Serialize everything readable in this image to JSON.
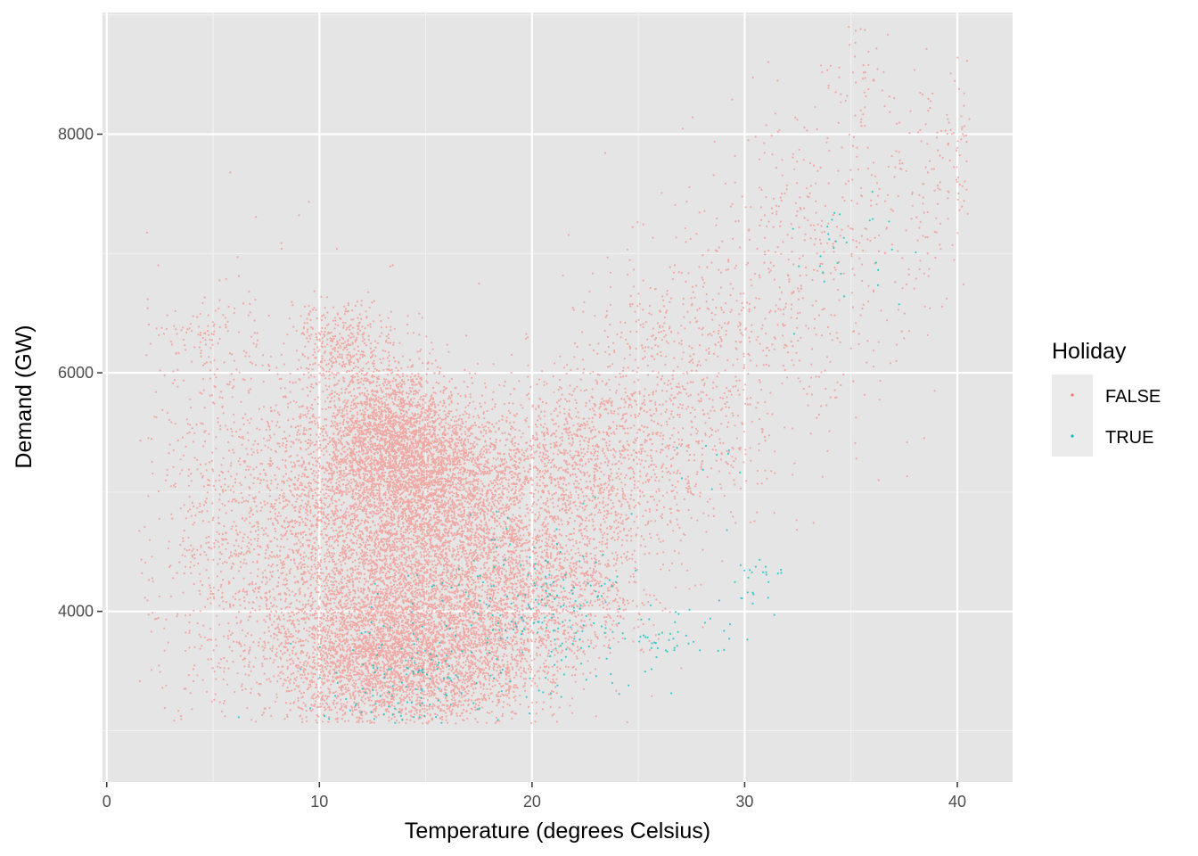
{
  "chart_data": {
    "type": "scatter",
    "title": "",
    "xlabel": "Temperature (degrees Celsius)",
    "ylabel": "Demand (GW)",
    "xlim": [
      -0.2,
      42.6
    ],
    "ylim": [
      2570,
      9020
    ],
    "x_ticks": [
      0,
      10,
      20,
      30,
      40
    ],
    "x_tick_labels": [
      "0",
      "10",
      "20",
      "30",
      "40"
    ],
    "y_ticks": [
      4000,
      6000,
      8000
    ],
    "y_tick_labels": [
      "4000",
      "6000",
      "8000"
    ],
    "x_minor": [
      5,
      15,
      25,
      35
    ],
    "y_minor": [
      3000,
      5000,
      7000,
      9000
    ],
    "grid": true,
    "panel_color": "#e5e5e5",
    "legend": {
      "title": "Holiday",
      "placement": "right",
      "entries": [
        {
          "label": "FALSE",
          "color": "#f8766d"
        },
        {
          "label": "TRUE",
          "color": "#00bfc4"
        }
      ]
    },
    "series": [
      {
        "name": "FALSE",
        "color": "#f8766d",
        "clusters": [
          {
            "x": 13.5,
            "y": 5400,
            "sx": 1.8,
            "sy": 330,
            "n": 2600
          },
          {
            "x": 16.5,
            "y": 5100,
            "sx": 2.0,
            "sy": 300,
            "n": 1400
          },
          {
            "x": 12.5,
            "y": 3600,
            "sx": 2.3,
            "sy": 330,
            "n": 2300
          },
          {
            "x": 16.5,
            "y": 3650,
            "sx": 2.4,
            "sy": 330,
            "n": 1700
          },
          {
            "x": 15.0,
            "y": 4400,
            "sx": 2.8,
            "sy": 420,
            "n": 2400
          },
          {
            "x": 11.0,
            "y": 4700,
            "sx": 2.2,
            "sy": 700,
            "n": 1500
          },
          {
            "x": 22.0,
            "y": 5200,
            "sx": 2.0,
            "sy": 350,
            "n": 900
          },
          {
            "x": 20.5,
            "y": 4200,
            "sx": 2.4,
            "sy": 320,
            "n": 1100
          },
          {
            "x": 6.5,
            "y": 4600,
            "sx": 2.4,
            "sy": 850,
            "n": 1100
          },
          {
            "x": 25.0,
            "y": 5500,
            "sx": 2.5,
            "sy": 600,
            "n": 600
          },
          {
            "x": 28.5,
            "y": 6100,
            "sx": 2.6,
            "sy": 650,
            "n": 500
          },
          {
            "x": 33.5,
            "y": 7000,
            "sx": 2.2,
            "sy": 650,
            "n": 350
          },
          {
            "x": 38.5,
            "y": 7500,
            "sx": 1.6,
            "sy": 550,
            "n": 150
          },
          {
            "x": 11.0,
            "y": 6200,
            "sx": 1.2,
            "sy": 200,
            "n": 350
          },
          {
            "x": 4.0,
            "y": 6300,
            "sx": 1.2,
            "sy": 180,
            "n": 90
          },
          {
            "x": 35.5,
            "y": 8500,
            "sx": 0.6,
            "sy": 250,
            "n": 40
          },
          {
            "x": 40.0,
            "y": 8000,
            "sx": 0.5,
            "sy": 200,
            "n": 30
          }
        ]
      },
      {
        "name": "TRUE",
        "color": "#00bfc4",
        "clusters": [
          {
            "x": 14.0,
            "y": 3400,
            "sx": 2.2,
            "sy": 350,
            "n": 160
          },
          {
            "x": 20.5,
            "y": 4000,
            "sx": 2.5,
            "sy": 350,
            "n": 200
          },
          {
            "x": 27.5,
            "y": 3800,
            "sx": 1.4,
            "sy": 150,
            "n": 40
          },
          {
            "x": 30.5,
            "y": 4250,
            "sx": 0.7,
            "sy": 150,
            "n": 25
          },
          {
            "x": 34.5,
            "y": 7000,
            "sx": 1.5,
            "sy": 300,
            "n": 30
          },
          {
            "x": 29.0,
            "y": 5200,
            "sx": 1.0,
            "sy": 300,
            "n": 10
          }
        ]
      }
    ]
  }
}
